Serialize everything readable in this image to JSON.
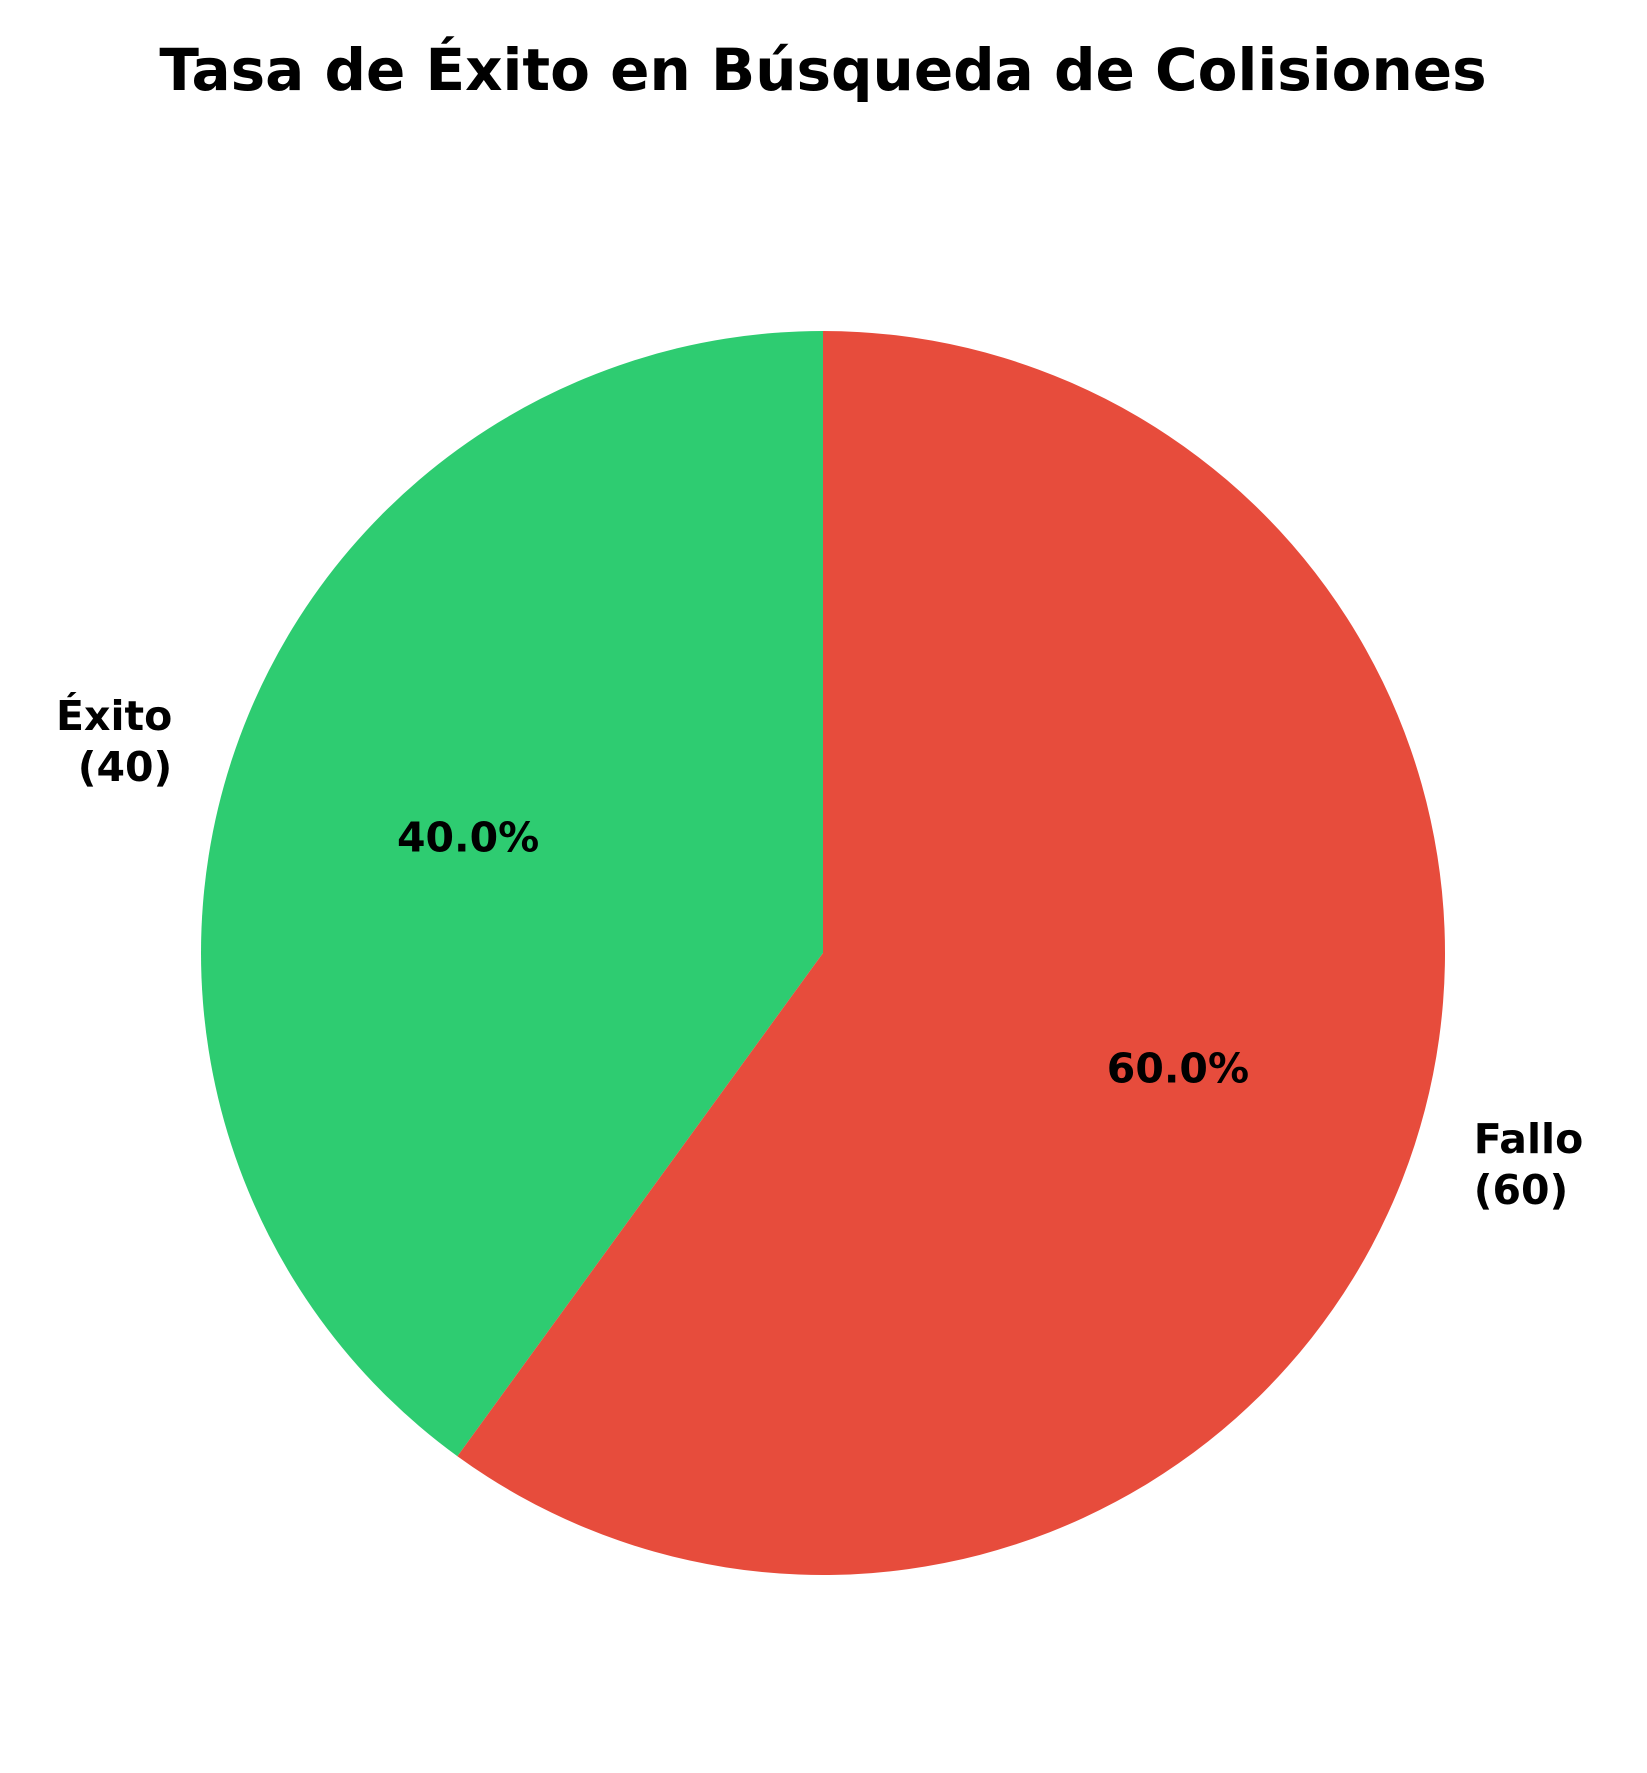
{
  "chart_data": {
    "type": "pie",
    "title": "Tasa de Éxito en Búsqueda de Colisiones",
    "start_angle_deg": 90,
    "direction": "counterclockwise",
    "slices": [
      {
        "label": "Éxito",
        "count_label": "(40)",
        "value": 40,
        "percent_label": "40.0%",
        "color": "#2ecc71"
      },
      {
        "label": "Fallo",
        "count_label": "(60)",
        "value": 60,
        "percent_label": "60.0%",
        "color": "#e74c3c"
      }
    ]
  }
}
